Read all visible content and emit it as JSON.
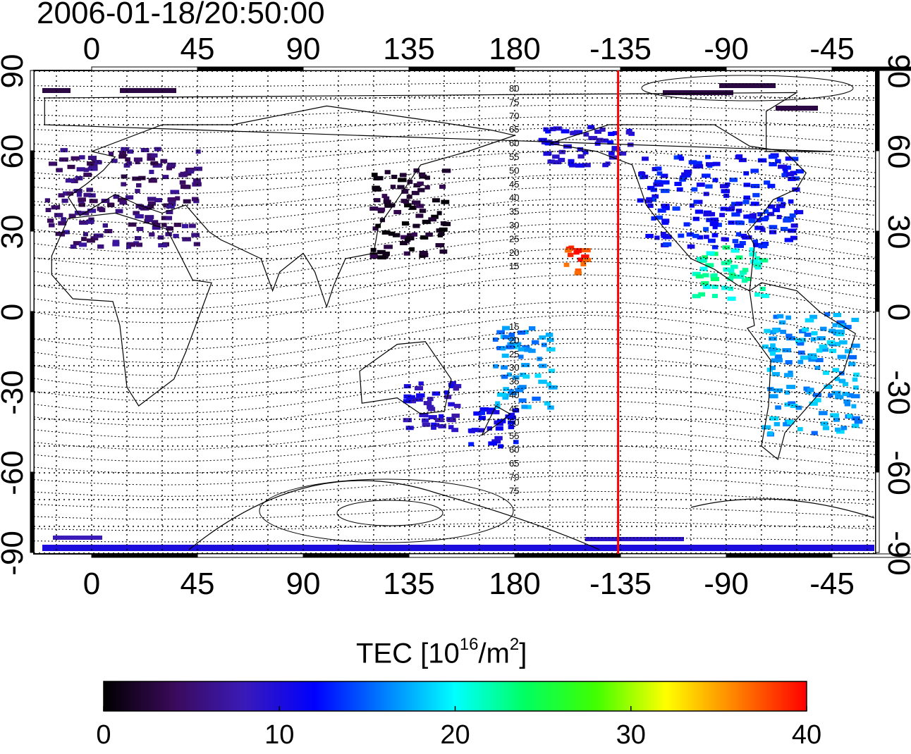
{
  "title": "2006-01-18/20:50:00",
  "map": {
    "lon_tick_labels": [
      "0",
      "45",
      "90",
      "135",
      "180",
      "-135",
      "-90",
      "-45"
    ],
    "lat_tick_labels": [
      "90",
      "60",
      "30",
      "0",
      "-30",
      "-60",
      "-90"
    ],
    "contour_labels_north": [
      "80",
      "75",
      "70",
      "65",
      "60",
      "55",
      "50",
      "45",
      "40",
      "35",
      "30",
      "25",
      "20",
      "15"
    ],
    "contour_labels_south": [
      "15",
      "20",
      "25",
      "30",
      "35",
      "40",
      "45",
      "50",
      "55",
      "60",
      "65",
      "70",
      "75"
    ],
    "terminator_longitude": -136,
    "terminator_color": "#ff0000"
  },
  "colorbar": {
    "title_main": "TEC  [10",
    "title_exp1": "16",
    "title_mid": "/m",
    "title_exp2": "2",
    "title_end": "]",
    "tick_labels": [
      "0",
      "10",
      "20",
      "30",
      "40"
    ],
    "range": [
      0,
      40
    ],
    "colors": [
      "#000000",
      "#3a0a5a",
      "#3a1ab8",
      "#0000ff",
      "#0080ff",
      "#00ffff",
      "#00ff60",
      "#40ff00",
      "#ffff00",
      "#ff8000",
      "#ff0000"
    ]
  },
  "tec_regions": [
    {
      "name": "europe",
      "lon": [
        -20,
        45
      ],
      "lat": [
        25,
        62
      ],
      "tec": 5
    },
    {
      "name": "east-asia",
      "lon": [
        118,
        150
      ],
      "lat": [
        20,
        55
      ],
      "tec": 2
    },
    {
      "name": "north-america",
      "lon": [
        -130,
        -60
      ],
      "lat": [
        25,
        60
      ],
      "tec": 12
    },
    {
      "name": "central-america",
      "lon": [
        -105,
        -75
      ],
      "lat": [
        5,
        25
      ],
      "tec": 22
    },
    {
      "name": "south-america",
      "lon": [
        -75,
        -35
      ],
      "lat": [
        -45,
        0
      ],
      "tec": 17
    },
    {
      "name": "australia",
      "lon": [
        132,
        155
      ],
      "lat": [
        -45,
        -25
      ],
      "tec": 9
    },
    {
      "name": "new-zealand",
      "lon": [
        160,
        180
      ],
      "lat": [
        -50,
        -35
      ],
      "tec": 11
    },
    {
      "name": "pacific-south",
      "lon": [
        170,
        195
      ],
      "lat": [
        -35,
        -5
      ],
      "tec": 17
    },
    {
      "name": "hawaii",
      "lon": [
        -160,
        -150
      ],
      "lat": [
        15,
        25
      ],
      "tec": 38
    },
    {
      "name": "alaska-canada",
      "lon": [
        -170,
        -130
      ],
      "lat": [
        55,
        70
      ],
      "tec": 10
    },
    {
      "name": "antarctica",
      "lon": [
        -20,
        340
      ],
      "lat": [
        -90,
        -85
      ],
      "tec": 10
    }
  ]
}
